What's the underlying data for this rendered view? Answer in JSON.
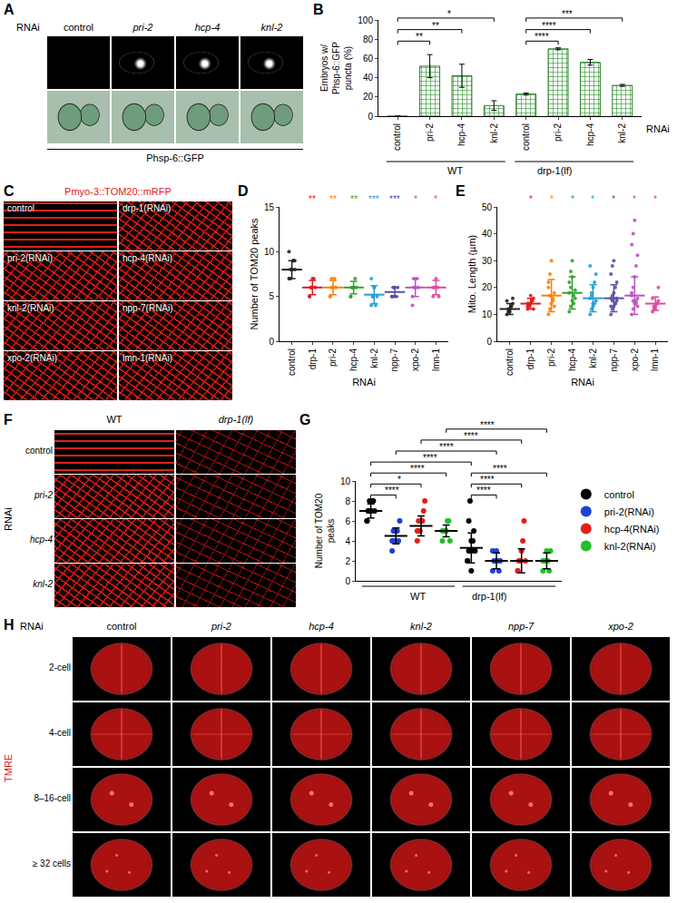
{
  "panels": {
    "A": {
      "letter": "A",
      "header": "RNAi",
      "columns": [
        "control",
        "pri-2",
        "hcp-4",
        "knl-2"
      ],
      "caption": "Phsp-6::GFP"
    },
    "C": {
      "letter": "C",
      "title": "Pmyo-3::TOM20::mRFP",
      "labels": [
        "control",
        "drp-1(RNAi)",
        "pri-2(RNAi)",
        "hcp-4(RNAi)",
        "knl-2(RNAi)",
        "npp-7(RNAi)",
        "xpo-2(RNAi)",
        "lmn-1(RNAi)"
      ]
    },
    "F": {
      "letter": "F",
      "columns": [
        "WT",
        "drp-1(lf)"
      ],
      "rows": [
        "control",
        "pri-2",
        "hcp-4",
        "knl-2"
      ],
      "row_header": "RNAi"
    },
    "H": {
      "letter": "H",
      "header": "RNAi",
      "stain": "TMRE",
      "columns": [
        "control",
        "pri-2",
        "hcp-4",
        "knl-2",
        "npp-7",
        "xpo-2"
      ],
      "rows": [
        "2-cell",
        "4-cell",
        "8–16-cell",
        "≥ 32 cells"
      ]
    }
  },
  "chart_data": [
    {
      "panel": "B",
      "type": "bar",
      "y_label": "Embryos w/ Phsp-6::GFP puncta (%)",
      "x_label": "RNAi",
      "categories": [
        "control",
        "pri-2",
        "hcp-4",
        "knl-2",
        "control",
        "pri-2",
        "hcp-4",
        "knl-2"
      ],
      "groups": [
        {
          "label": "WT",
          "from": 0,
          "to": 3
        },
        {
          "label": "drp-1(lf)",
          "from": 4,
          "to": 7
        }
      ],
      "values": [
        0,
        52,
        42,
        11,
        23,
        70,
        56,
        32
      ],
      "errors": [
        0,
        12,
        12,
        5,
        1,
        1,
        3,
        1
      ],
      "color": "#8fd18f",
      "ylim": [
        0,
        100
      ],
      "yticks": [
        0,
        20,
        40,
        60,
        80,
        100
      ],
      "grid": false,
      "comparisons": [
        {
          "a": 0,
          "b": 1,
          "label": "**"
        },
        {
          "a": 0,
          "b": 2,
          "label": "**"
        },
        {
          "a": 0,
          "b": 3,
          "label": "*"
        },
        {
          "a": 4,
          "b": 5,
          "label": "****"
        },
        {
          "a": 4,
          "b": 6,
          "label": "****"
        },
        {
          "a": 4,
          "b": 7,
          "label": "***"
        }
      ]
    },
    {
      "panel": "D",
      "type": "scatter",
      "y_label": "Number of TOM20 peaks",
      "x_label": "RNAi",
      "categories": [
        "control",
        "drp-1",
        "pri-2",
        "hcp-4",
        "knl-2",
        "npp-7",
        "xpo-2",
        "lmn-1"
      ],
      "colors": [
        "#222222",
        "#e41a1c",
        "#ff7f00",
        "#33a02c",
        "#1f9fd1",
        "#5a4fa0",
        "#c04fc4",
        "#e0479e"
      ],
      "points": [
        [
          7,
          8,
          8,
          9,
          9,
          10,
          7,
          8,
          9,
          8
        ],
        [
          5,
          6,
          6,
          7,
          6,
          5,
          6,
          7
        ],
        [
          5,
          6,
          6,
          7,
          6,
          5,
          7,
          6
        ],
        [
          5,
          6,
          6,
          7,
          6,
          5,
          6,
          6
        ],
        [
          4,
          5,
          6,
          4,
          5,
          7,
          5,
          6
        ],
        [
          5,
          5,
          6,
          5,
          6,
          5,
          6
        ],
        [
          4,
          6,
          6,
          7,
          6,
          5,
          7
        ],
        [
          5,
          6,
          7,
          6,
          5,
          6
        ]
      ],
      "means": [
        8,
        6,
        6,
        6,
        5.2,
        5.5,
        6,
        6
      ],
      "errors": [
        1,
        0.8,
        0.8,
        0.7,
        1,
        0.5,
        1,
        0.8
      ],
      "significance": [
        null,
        "**",
        "**",
        "**",
        "***",
        "***",
        "*",
        "*"
      ],
      "ylim": [
        0,
        15
      ],
      "yticks": [
        0,
        5,
        10,
        15
      ],
      "grid": false
    },
    {
      "panel": "E",
      "type": "scatter",
      "y_label": "Mito. Length (µm)",
      "x_label": "RNAi",
      "categories": [
        "control",
        "drp-1",
        "pri-2",
        "hcp-4",
        "knl-2",
        "npp-7",
        "xpo-2",
        "lmn-1"
      ],
      "colors": [
        "#222222",
        "#e41a1c",
        "#ff7f00",
        "#33a02c",
        "#1f9fd1",
        "#5a4fa0",
        "#c04fc4",
        "#e0479e"
      ],
      "points": [
        [
          10,
          11,
          12,
          13,
          14,
          15,
          12,
          11,
          13,
          16
        ],
        [
          12,
          13,
          14,
          15,
          16,
          13,
          14,
          17,
          15,
          12,
          14
        ],
        [
          10,
          12,
          14,
          16,
          18,
          20,
          25,
          30,
          15,
          13,
          22,
          17
        ],
        [
          11,
          13,
          15,
          17,
          19,
          22,
          26,
          30,
          14,
          16,
          18,
          20,
          24
        ],
        [
          10,
          12,
          13,
          14,
          15,
          16,
          18,
          20,
          22,
          25,
          28,
          17,
          14
        ],
        [
          10,
          12,
          13,
          14,
          15,
          16,
          17,
          18,
          20,
          22,
          25,
          28,
          30,
          14,
          16,
          13,
          15
        ],
        [
          10,
          12,
          14,
          15,
          16,
          18,
          20,
          24,
          28,
          32,
          36,
          40,
          45,
          14,
          13,
          17,
          15
        ],
        [
          11,
          12,
          13,
          14,
          15,
          16,
          13,
          12,
          14,
          20
        ]
      ],
      "means": [
        12,
        14,
        17,
        18,
        16,
        16,
        17,
        14
      ],
      "errors": [
        2,
        2,
        6,
        6,
        5,
        5,
        7,
        2.5
      ],
      "significance": [
        null,
        "*",
        "*",
        "*",
        "*",
        "*",
        "*",
        "*"
      ],
      "ylim": [
        0,
        50
      ],
      "yticks": [
        0,
        10,
        20,
        30,
        40,
        50
      ],
      "grid": false
    },
    {
      "panel": "G",
      "type": "scatter",
      "y_label": "Number of TOM20 peaks",
      "groups": [
        "WT",
        "drp-1(lf)"
      ],
      "series": [
        {
          "name": "control",
          "color": "#000000",
          "points": [
            [
              6,
              7,
              7,
              7,
              8,
              8,
              7,
              6,
              7,
              8,
              7
            ],
            [
              2,
              3,
              3,
              4,
              4,
              5,
              3,
              2,
              6,
              8,
              1,
              4,
              3
            ]
          ],
          "means": [
            7,
            3.3
          ],
          "errors": [
            0.7,
            1.5
          ]
        },
        {
          "name": "pri-2(RNAi)",
          "color": "#1f3fd6",
          "points": [
            [
              3,
              4,
              4,
              5,
              5,
              4,
              6,
              4,
              5
            ],
            [
              1,
              2,
              2,
              3,
              2,
              1,
              2,
              3
            ]
          ],
          "means": [
            4.5,
            2
          ],
          "errors": [
            0.8,
            0.8
          ]
        },
        {
          "name": "hcp-4(RNAi)",
          "color": "#e0201a",
          "points": [
            [
              4,
              5,
              5,
              6,
              6,
              7,
              8,
              5,
              6,
              5
            ],
            [
              1,
              2,
              2,
              3,
              4,
              6,
              2,
              1,
              2
            ]
          ],
          "means": [
            5.5,
            2
          ],
          "errors": [
            1,
            1.2
          ]
        },
        {
          "name": "knl-2(RNAi)",
          "color": "#22c02a",
          "points": [
            [
              4,
              5,
              5,
              5,
              6,
              6,
              4,
              5
            ],
            [
              1,
              2,
              2,
              3,
              2,
              1,
              3,
              2
            ]
          ],
          "means": [
            5,
            2
          ],
          "errors": [
            0.6,
            0.8
          ]
        }
      ],
      "comparisons": [
        {
          "a": 0,
          "b": 1,
          "label": "****"
        },
        {
          "a": 0,
          "b": 2,
          "label": "*"
        },
        {
          "a": 0,
          "b": 3,
          "label": "****"
        },
        {
          "a": 4,
          "b": 5,
          "label": "****"
        },
        {
          "a": 4,
          "b": 6,
          "label": "****"
        },
        {
          "a": 4,
          "b": 7,
          "label": "****"
        },
        {
          "a": 0,
          "b": 4,
          "label": "****"
        },
        {
          "a": 1,
          "b": 5,
          "label": "****"
        },
        {
          "a": 2,
          "b": 6,
          "label": "****"
        },
        {
          "a": 3,
          "b": 7,
          "label": "****"
        }
      ],
      "ylim": [
        0,
        10
      ],
      "yticks": [
        0,
        2,
        4,
        6,
        8,
        10
      ],
      "grid": false,
      "legend": "right",
      "tick_labels": "y"
    }
  ]
}
